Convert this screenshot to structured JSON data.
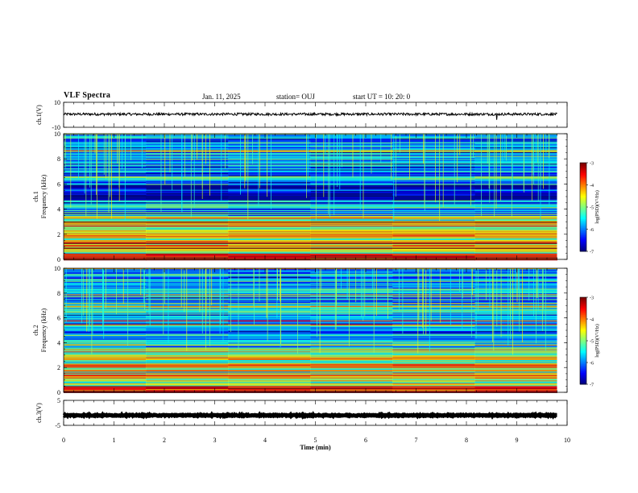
{
  "header": {
    "title": "VLF Spectra",
    "date": "Jan. 11, 2025",
    "station": "station= OUJ",
    "start": "start  UT =   10: 20: 0"
  },
  "chart_data": [
    {
      "type": "line",
      "ylabel": "ch.1(V)",
      "ylim": [
        -10,
        10
      ],
      "y_ticks": [
        "10",
        "-10"
      ],
      "series": [
        {
          "level": 0.5,
          "noise_amplitude": 1.0,
          "color": "#000000"
        }
      ]
    },
    {
      "type": "heatmap",
      "ylabel_line1": "ch.1",
      "ylabel_line2": "Frequency (kHz)",
      "ylim": [
        0,
        10
      ],
      "y_ticks": [
        "0",
        "2",
        "4",
        "6",
        "8",
        "10"
      ],
      "colorbar": {
        "label": "log(PSD)(V²/Hz)",
        "ticks": [
          "-3",
          "-4",
          "-5",
          "-6",
          "-7"
        ],
        "range": [
          -7,
          -3
        ]
      }
    },
    {
      "type": "heatmap",
      "ylabel_line1": "ch.2",
      "ylabel_line2": "Frequency (kHz)",
      "ylim": [
        0,
        10
      ],
      "y_ticks": [
        "0",
        "2",
        "4",
        "6",
        "8",
        "10"
      ],
      "colorbar": {
        "label": "log(PSD)(V²/Hz)",
        "ticks": [
          "-3",
          "-4",
          "-5",
          "-6",
          "-7"
        ],
        "range": [
          -7,
          -3
        ]
      }
    },
    {
      "type": "line",
      "ylabel": "ch.3(V)",
      "ylim": [
        -5,
        5
      ],
      "y_ticks": [
        "5",
        "-5"
      ],
      "series": [
        {
          "level": -1.0,
          "noise_amplitude": 0.2,
          "color": "#000000"
        }
      ]
    }
  ],
  "xaxis": {
    "label": "Time (min)",
    "range": [
      0,
      10
    ],
    "data_end": 9.8,
    "ticks": [
      "0",
      "1",
      "2",
      "3",
      "4",
      "5",
      "6",
      "7",
      "8",
      "9",
      "10"
    ]
  }
}
